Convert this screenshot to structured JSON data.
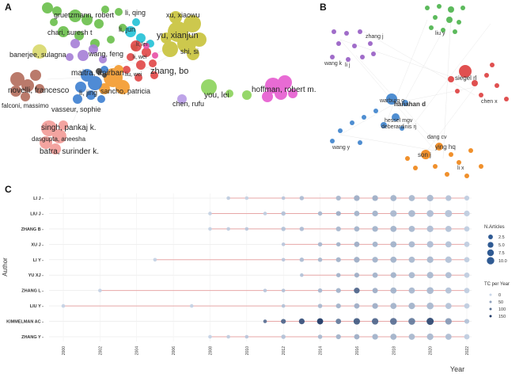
{
  "panels": {
    "a": "A",
    "b": "B",
    "c": "C"
  },
  "panel_a": {
    "labels": [
      "gruetzmann, robert",
      "li, qing",
      "xu, xiaowu",
      "chari, suresh t",
      "yu, xianjun",
      "li, jun",
      "banerjee, sulagna",
      "shi, si",
      "wang, feng",
      "li, lei",
      "zhang, bo",
      "maitra, anirban",
      "liu, wei",
      "li, wei",
      "novelli, francesco",
      "li, jing",
      "sancho, patricia",
      "you, lei",
      "hoffman, robert m.",
      "falconi, massimo",
      "vasseur, sophie",
      "chen, rufu",
      "singh, pankaj k.",
      "dasgupta, aneesha",
      "batra, surinder k."
    ]
  },
  "panel_b": {
    "labels": [
      "siegel rl",
      "hanahan d",
      "warburg o",
      "hessel mgv",
      "deberardinis rj",
      "ying hq",
      "son j",
      "dang cv",
      "zhang j",
      "wang k",
      "li j",
      "liu y",
      "chen x",
      "wang y",
      "li x"
    ]
  },
  "chart_data": {
    "type": "scatter",
    "title": "",
    "xlabel": "Year",
    "ylabel": "Author",
    "xlim": [
      2000,
      2022
    ],
    "x_ticks": [
      2000,
      2002,
      2004,
      2006,
      2008,
      2010,
      2012,
      2014,
      2016,
      2018,
      2020,
      2022
    ],
    "authors": [
      "LI J",
      "LIU J",
      "ZHANG B",
      "XU J",
      "LI Y",
      "YU XJ",
      "ZHANG L",
      "LIU Y",
      "KIMMELMAN AC",
      "ZHANG Y"
    ],
    "line_ranges": [
      [
        2009,
        2022
      ],
      [
        2008,
        2022
      ],
      [
        2008,
        2022
      ],
      [
        2012,
        2022
      ],
      [
        2005,
        2022
      ],
      [
        2013,
        2022
      ],
      [
        2002,
        2022
      ],
      [
        2000,
        2022
      ],
      [
        2011,
        2022
      ],
      [
        2008,
        2022
      ]
    ],
    "points": [
      [
        [
          2009,
          1,
          10
        ],
        [
          2010,
          1,
          5
        ],
        [
          2012,
          1,
          15
        ],
        [
          2013,
          2,
          25
        ],
        [
          2015,
          3,
          30
        ],
        [
          2016,
          5,
          40
        ],
        [
          2017,
          5,
          40
        ],
        [
          2018,
          6,
          35
        ],
        [
          2019,
          6,
          30
        ],
        [
          2020,
          7,
          30
        ],
        [
          2021,
          5,
          20
        ],
        [
          2022,
          3,
          10
        ]
      ],
      [
        [
          2008,
          1,
          5
        ],
        [
          2011,
          1,
          10
        ],
        [
          2012,
          2,
          20
        ],
        [
          2014,
          2,
          30
        ],
        [
          2015,
          3,
          40
        ],
        [
          2016,
          4,
          35
        ],
        [
          2017,
          5,
          35
        ],
        [
          2018,
          7,
          30
        ],
        [
          2019,
          8,
          30
        ],
        [
          2020,
          8,
          25
        ],
        [
          2021,
          9,
          20
        ],
        [
          2022,
          5,
          10
        ]
      ],
      [
        [
          2008,
          1,
          5
        ],
        [
          2009,
          1,
          10
        ],
        [
          2010,
          1,
          15
        ],
        [
          2012,
          2,
          20
        ],
        [
          2013,
          2,
          25
        ],
        [
          2015,
          3,
          30
        ],
        [
          2016,
          4,
          35
        ],
        [
          2017,
          5,
          35
        ],
        [
          2018,
          6,
          35
        ],
        [
          2019,
          6,
          30
        ],
        [
          2020,
          7,
          25
        ],
        [
          2021,
          6,
          20
        ],
        [
          2022,
          4,
          10
        ]
      ],
      [
        [
          2012,
          1,
          15
        ],
        [
          2014,
          2,
          30
        ],
        [
          2015,
          2,
          35
        ],
        [
          2016,
          4,
          40
        ],
        [
          2017,
          4,
          35
        ],
        [
          2018,
          6,
          35
        ],
        [
          2019,
          6,
          30
        ],
        [
          2020,
          7,
          25
        ],
        [
          2021,
          6,
          20
        ],
        [
          2022,
          4,
          10
        ]
      ],
      [
        [
          2005,
          1,
          5
        ],
        [
          2012,
          1,
          15
        ],
        [
          2013,
          2,
          25
        ],
        [
          2014,
          2,
          30
        ],
        [
          2015,
          3,
          35
        ],
        [
          2016,
          5,
          40
        ],
        [
          2017,
          5,
          35
        ],
        [
          2018,
          6,
          35
        ],
        [
          2019,
          6,
          30
        ],
        [
          2020,
          7,
          30
        ],
        [
          2021,
          7,
          20
        ],
        [
          2022,
          4,
          10
        ]
      ],
      [
        [
          2013,
          1,
          20
        ],
        [
          2015,
          2,
          35
        ],
        [
          2016,
          3,
          40
        ],
        [
          2017,
          4,
          35
        ],
        [
          2018,
          5,
          35
        ],
        [
          2019,
          6,
          30
        ],
        [
          2020,
          7,
          30
        ],
        [
          2021,
          6,
          25
        ],
        [
          2022,
          4,
          10
        ]
      ],
      [
        [
          2002,
          1,
          5
        ],
        [
          2011,
          1,
          15
        ],
        [
          2012,
          1,
          20
        ],
        [
          2014,
          2,
          30
        ],
        [
          2015,
          3,
          35
        ],
        [
          2016,
          5,
          110
        ],
        [
          2017,
          4,
          40
        ],
        [
          2018,
          6,
          35
        ],
        [
          2019,
          6,
          30
        ],
        [
          2020,
          8,
          30
        ],
        [
          2021,
          6,
          20
        ],
        [
          2022,
          4,
          10
        ]
      ],
      [
        [
          2000,
          1,
          5
        ],
        [
          2007,
          1,
          5
        ],
        [
          2012,
          1,
          20
        ],
        [
          2014,
          2,
          30
        ],
        [
          2015,
          3,
          35
        ],
        [
          2016,
          4,
          40
        ],
        [
          2017,
          5,
          40
        ],
        [
          2018,
          6,
          35
        ],
        [
          2019,
          7,
          35
        ],
        [
          2020,
          8,
          30
        ],
        [
          2021,
          6,
          20
        ],
        [
          2022,
          4,
          10
        ]
      ],
      [
        [
          2011,
          1,
          100
        ],
        [
          2012,
          3,
          110
        ],
        [
          2013,
          5,
          130
        ],
        [
          2014,
          6,
          155
        ],
        [
          2015,
          4,
          90
        ],
        [
          2016,
          7,
          120
        ],
        [
          2017,
          7,
          110
        ],
        [
          2018,
          8,
          100
        ],
        [
          2019,
          8,
          90
        ],
        [
          2020,
          9,
          140
        ],
        [
          2021,
          7,
          60
        ],
        [
          2022,
          3,
          20
        ]
      ],
      [
        [
          2008,
          1,
          5
        ],
        [
          2009,
          1,
          10
        ],
        [
          2010,
          1,
          15
        ],
        [
          2012,
          2,
          20
        ],
        [
          2014,
          2,
          30
        ],
        [
          2015,
          3,
          35
        ],
        [
          2016,
          4,
          40
        ],
        [
          2017,
          5,
          35
        ],
        [
          2018,
          6,
          35
        ],
        [
          2019,
          6,
          30
        ],
        [
          2020,
          7,
          30
        ],
        [
          2021,
          6,
          25
        ],
        [
          2022,
          4,
          10
        ]
      ]
    ],
    "legend_articles": {
      "title": "N.Articles",
      "values": [
        2.5,
        5.0,
        7.5,
        10.0
      ],
      "labels": [
        "2.5",
        "5.0",
        "7.5",
        "10.0"
      ]
    },
    "legend_tc": {
      "title": "TC per Year",
      "values": [
        0,
        50,
        100,
        150
      ],
      "labels": [
        "0",
        "50",
        "100",
        "150"
      ]
    }
  },
  "colors": {
    "line": "#e7a7a7",
    "point_light": "#c9d6e8",
    "point_dark": "#14305f",
    "grid": "#e6e6e6"
  }
}
